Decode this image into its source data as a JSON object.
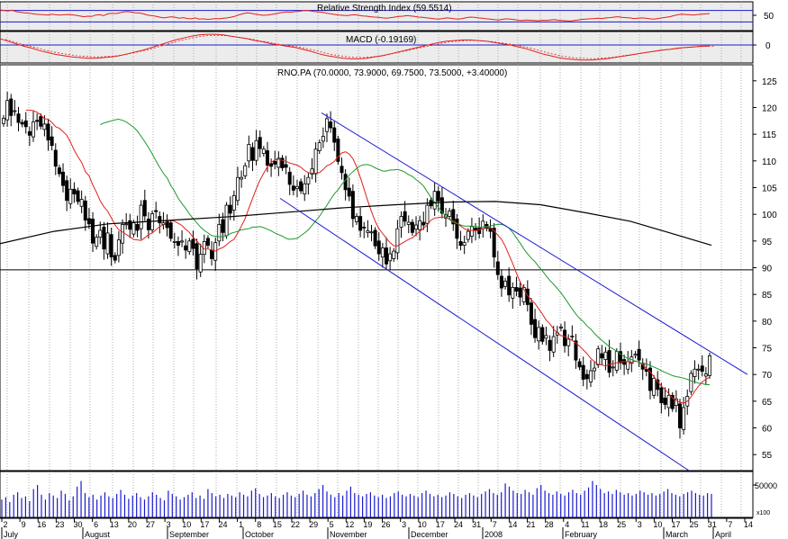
{
  "colors": {
    "background": "#ffffff",
    "panel_background": "#ececec",
    "grid": "#9a9a9a",
    "candle": "#000000",
    "sma_red": "#e0201c",
    "sma_green": "#1b9a2a",
    "sma_black": "#000000",
    "channel": "#1a1ad0",
    "volume": "#1a1ad0",
    "indicator_line": "#e0201c",
    "reference_line": "#1a1ad0",
    "horizontal_line": "#000000"
  },
  "indicators": {
    "rsi_label": "Relative Strength Index (59.5514)",
    "macd_label": "MACD (-0.19169)",
    "rsi_tick": "50",
    "macd_tick": "0"
  },
  "price_panel": {
    "title": "RNO.PA (70.0000, 73.9000, 69.7500, 73.5000, +3.40000)"
  },
  "volume_panel": {
    "tick": "50000",
    "multiplier": "x100"
  },
  "x_axis": {
    "days": [
      "2",
      "9",
      "16",
      "23",
      "30",
      "6",
      "13",
      "20",
      "27",
      "3",
      "10",
      "17",
      "24",
      "1",
      "8",
      "15",
      "22",
      "29",
      "5",
      "12",
      "19",
      "26",
      "3",
      "10",
      "17",
      "24",
      "31",
      "7",
      "14",
      "21",
      "28",
      "4",
      "11",
      "18",
      "25",
      "3",
      "10",
      "17",
      "25",
      "31",
      "7",
      "14"
    ],
    "months": [
      "July",
      "August",
      "September",
      "October",
      "November",
      "December",
      "2008",
      "February",
      "March",
      "April"
    ]
  },
  "chart_data": {
    "type": "candlestick",
    "title": "RNO.PA (70.0000, 73.9000, 69.7500, 73.5000, +3.40000)",
    "ylim": [
      52,
      128
    ],
    "y_ticks": [
      "125",
      "120",
      "115",
      "110",
      "105",
      "100",
      "95",
      "90",
      "85",
      "80",
      "75",
      "70",
      "65",
      "60",
      "55"
    ],
    "horizontal_line": 89.6,
    "closes": [
      118.0,
      121.3,
      118.5,
      119.4,
      117.2,
      116.9,
      116.4,
      114.8,
      117.3,
      117.4,
      116.5,
      116.9,
      113.9,
      112.9,
      109.0,
      107.6,
      105.4,
      102.6,
      104.7,
      103.8,
      102.4,
      102.8,
      98.9,
      98.2,
      94.6,
      95.7,
      97.0,
      93.5,
      96.5,
      92.0,
      91.4,
      95.2,
      98.1,
      98.2,
      97.2,
      98.4,
      97.0,
      101.7,
      99.7,
      97.1,
      100.1,
      100.5,
      98.4,
      98.4,
      97.5,
      95.5,
      94.9,
      94.2,
      95.0,
      93.3,
      95.0,
      93.6,
      89.8,
      92.5,
      94.9,
      94.2,
      91.7,
      94.7,
      98.1,
      96.6,
      101.7,
      100.2,
      103.5,
      106.9,
      106.9,
      109.1,
      113.1,
      110.1,
      113.8,
      112.3,
      112.2,
      109.2,
      109.0,
      109.4,
      110.5,
      108.7,
      108.8,
      105.6,
      104.5,
      105.2,
      104.4,
      105.7,
      106.9,
      108.5,
      112.2,
      113.4,
      114.6,
      117.9,
      116.2,
      113.5,
      109.9,
      107.8,
      104.6,
      103.4,
      99.2,
      99.6,
      97.0,
      97.5,
      96.9,
      96.7,
      94.1,
      92.6,
      93.7,
      90.7,
      92.6,
      93.1,
      97.3,
      99.6,
      98.7,
      98.5,
      96.6,
      98.0,
      98.8,
      98.0,
      101.7,
      101.6,
      104.3,
      102.5,
      100.2,
      99.9,
      100.6,
      98.2,
      95.5,
      94.2,
      94.7,
      96.8,
      97.7,
      97.1,
      96.4,
      98.7,
      97.4,
      96.8,
      92.0,
      88.7,
      86.2,
      87.5,
      84.9,
      86.3,
      85.6,
      84.5,
      86.3,
      83.1,
      79.4,
      76.9,
      78.8,
      76.2,
      77.3,
      74.5,
      77.1,
      77.8,
      78.9,
      75.4,
      76.6,
      77.2,
      72.7,
      71.4,
      69.1,
      69.2,
      70.7,
      71.2,
      74.8,
      73.1,
      74.2,
      70.4,
      71.4,
      74.3,
      72.2,
      71.9,
      72.4,
      73.3,
      73.8,
      72.7,
      71.0,
      70.6,
      67.0,
      69.3,
      67.2,
      64.7,
      64.4,
      66.1,
      63.6,
      65.4,
      60.0,
      63.8,
      65.9,
      70.2,
      71.0,
      71.0,
      70.6,
      70.1,
      73.5
    ],
    "sma_red": [
      119.5,
      119.5,
      119.4,
      119.1,
      118.6,
      117.9,
      117.8,
      117.2,
      116.4,
      116.1,
      115.5,
      114.8,
      113.5,
      112.0,
      110.8,
      109.7,
      108.0,
      107.2,
      105.5,
      104.1,
      102.5,
      101.4,
      100.6,
      99.3,
      98.0,
      97.1,
      96.7,
      96.2,
      95.8,
      95.3,
      95.2,
      95.1,
      95.6,
      96.2,
      96.5,
      97.1,
      97.7,
      98.0,
      98.8,
      98.8,
      98.7,
      98.3,
      97.9,
      97.2,
      96.6,
      95.7,
      95.0,
      94.2,
      93.5,
      93.5,
      93.3,
      93.1,
      93.5,
      93.8,
      94.3,
      94.9,
      95.3,
      96.5,
      97.8,
      99.2,
      101.1,
      103.0,
      104.8,
      106.4,
      107.7,
      108.9,
      109.7,
      110.2,
      110.3,
      110.1,
      109.9,
      109.6,
      109.4,
      109.2,
      108.8,
      108.2,
      107.8,
      107.7,
      107.7,
      107.8,
      108.4,
      109.1,
      109.4,
      109.9,
      110.8,
      111.5,
      111.7,
      111.3,
      110.4,
      108.9,
      106.9,
      104.7,
      102.5,
      100.5,
      98.7,
      97.3,
      96.4,
      95.5,
      94.7,
      94.1,
      94.1,
      94.5,
      94.9,
      95.3,
      95.6,
      96.2,
      96.8,
      97.4,
      98.0,
      98.9,
      99.3,
      99.4,
      99.5,
      99.4,
      99.1,
      98.8,
      98.3,
      97.8,
      97.3,
      97.0,
      97.0,
      96.9,
      97.1,
      97.3,
      97.6,
      97.5,
      96.9,
      96.1,
      95.3,
      94.0,
      92.4,
      90.8,
      89.0,
      87.3,
      85.9,
      84.8,
      84.0,
      83.3,
      82.3,
      81.3,
      80.2,
      79.5,
      78.5,
      77.8,
      77.3,
      77.1,
      76.8,
      76.4,
      75.9,
      75.3,
      74.6,
      73.9,
      73.0,
      72.4,
      71.9,
      71.8,
      71.6,
      71.9,
      72.0,
      72.2,
      72.4,
      72.4,
      72.4,
      72.3,
      72.5,
      72.3,
      71.8,
      71.1,
      70.5,
      69.6,
      68.7,
      67.8,
      67.2,
      66.4,
      65.6,
      65.1,
      64.8,
      64.6,
      65.0,
      65.8,
      66.9,
      67.8,
      68.6,
      69.1,
      69.5
    ],
    "sma_green": [
      116.8,
      117.1,
      117.3,
      117.5,
      117.7,
      117.8,
      117.6,
      117.3,
      116.8,
      116.3,
      115.6,
      114.6,
      113.6,
      112.5,
      111.3,
      110.0,
      108.8,
      107.7,
      106.8,
      105.4,
      104.3,
      103.0,
      102.0,
      101.1,
      100.1,
      99.2,
      98.4,
      97.6,
      97.0,
      96.5,
      96.0,
      95.9,
      95.8,
      95.8,
      95.9,
      96.4,
      96.6,
      96.8,
      97.1,
      97.2,
      97.3,
      97.6,
      97.6,
      97.7,
      97.5,
      97.2,
      96.9,
      96.5,
      96.2,
      95.9,
      95.5,
      95.3,
      95.4,
      95.5,
      96.0,
      96.5,
      97.1,
      97.9,
      98.8,
      99.6,
      100.7,
      101.7,
      102.8,
      103.8,
      104.6,
      105.6,
      106.4,
      107.3,
      108.0,
      108.6,
      109.1,
      109.3,
      109.3,
      109.1,
      108.7,
      108.4,
      108.1,
      108.1,
      108.3,
      108.3,
      108.4,
      108.2,
      107.9,
      107.4,
      107.1,
      106.5,
      106.0,
      105.3,
      104.2,
      103.2,
      102.2,
      101.3,
      100.5,
      99.6,
      99.0,
      98.5,
      98.3,
      98.0,
      97.8,
      97.8,
      97.8,
      97.7,
      97.6,
      97.6,
      97.7,
      97.8,
      98.0,
      98.1,
      98.1,
      97.9,
      97.4,
      96.6,
      95.6,
      94.6,
      93.5,
      92.6,
      91.8,
      91.1,
      90.2,
      89.4,
      88.5,
      87.6,
      86.9,
      86.1,
      85.3,
      84.3,
      83.3,
      82.3,
      81.3,
      80.5,
      79.9,
      79.1,
      78.5,
      77.7,
      77.0,
      76.4,
      75.8,
      75.2,
      74.8,
      74.4,
      73.8,
      73.4,
      73.0,
      72.8,
      72.5,
      72.3,
      72.0,
      72.0,
      71.7,
      71.4,
      71.1,
      70.7,
      70.4,
      70.1,
      69.8,
      69.6,
      69.5,
      69.3,
      69.1,
      68.8,
      68.6,
      68.4,
      68.3,
      68.1,
      68.1
    ],
    "sma_black": [
      [
        0,
        94.5
      ],
      [
        60,
        96.8
      ],
      [
        120,
        98.2
      ],
      [
        200,
        99.0
      ],
      [
        260,
        99.6
      ],
      [
        320,
        100.4
      ],
      [
        380,
        101.2
      ],
      [
        440,
        101.8
      ],
      [
        500,
        102.3
      ],
      [
        550,
        102.4
      ],
      [
        600,
        101.8
      ],
      [
        650,
        100.3
      ],
      [
        700,
        98.7
      ],
      [
        740,
        96.7
      ],
      [
        790,
        94.2
      ]
    ],
    "channel_upper": [
      [
        357,
        119
      ],
      [
        830,
        70
      ]
    ],
    "channel_lower": [
      [
        311,
        103
      ],
      [
        765,
        52
      ]
    ],
    "rsi": [
      72,
      70,
      68,
      71,
      66,
      64,
      62,
      61,
      59,
      57,
      56,
      55,
      54,
      57,
      55,
      54,
      55,
      56,
      55,
      53,
      51,
      48,
      50,
      49,
      54,
      55,
      52,
      58,
      60,
      59,
      62,
      65,
      66,
      64,
      62,
      61,
      58,
      54,
      52,
      50,
      47,
      44,
      46,
      48,
      46,
      43,
      45,
      42,
      41,
      44,
      40,
      41,
      39,
      40,
      42,
      41,
      43,
      44,
      47,
      50,
      55,
      59,
      62,
      60,
      57,
      55,
      53,
      54,
      56,
      58,
      61,
      63,
      65,
      64,
      66,
      67,
      69,
      70,
      68,
      66,
      65,
      63,
      60,
      58,
      56,
      54,
      53,
      52,
      54,
      55,
      53,
      51,
      50,
      48,
      47,
      46,
      44,
      43,
      45,
      47,
      49,
      50,
      52,
      51,
      49,
      47,
      46,
      44,
      43,
      41,
      40,
      42,
      44,
      43,
      41,
      40,
      42,
      45,
      47,
      46,
      44,
      43,
      41,
      40,
      38,
      37,
      39,
      41,
      40,
      38,
      36,
      35,
      37,
      36,
      35,
      34,
      36,
      35,
      37,
      38,
      36,
      35,
      34,
      33,
      35,
      37,
      39,
      40,
      41,
      42,
      43,
      42,
      44,
      45,
      47,
      48,
      46,
      45,
      44,
      42,
      43,
      44,
      43,
      41,
      40,
      42,
      44,
      46,
      48,
      52,
      55,
      57,
      56,
      55,
      54,
      56,
      57,
      58,
      59
    ],
    "rsi_levels": [
      70,
      30
    ],
    "macd": [
      1.0,
      0.6,
      0.2,
      -0.2,
      -0.5,
      -0.9,
      -1.2,
      -1.5,
      -1.7,
      -1.9,
      -2.0,
      -2.1,
      -2.1,
      -2.0,
      -1.9,
      -1.7,
      -1.4,
      -1.1,
      -0.8,
      -0.4,
      0.0,
      0.4,
      0.8,
      1.1,
      1.4,
      1.6,
      1.7,
      1.7,
      1.6,
      1.4,
      1.2,
      1.0,
      0.7,
      0.5,
      0.2,
      0.0,
      -0.2,
      -0.4,
      -0.7,
      -1.0,
      -1.4,
      -1.7,
      -1.9,
      -2.1,
      -2.2,
      -2.2,
      -2.1,
      -1.9,
      -1.7,
      -1.4,
      -1.1,
      -0.8,
      -0.5,
      -0.2,
      0.1,
      0.4,
      0.6,
      0.7,
      0.8,
      0.8,
      0.7,
      0.6,
      0.4,
      0.2,
      0.0,
      -0.3,
      -0.6,
      -1.0,
      -1.4,
      -1.7,
      -2.0,
      -2.2,
      -2.3,
      -2.4,
      -2.4,
      -2.3,
      -2.2,
      -2.0,
      -1.8,
      -1.6,
      -1.4,
      -1.2,
      -1.0,
      -0.8,
      -0.7,
      -0.5,
      -0.4,
      -0.3,
      -0.2,
      -0.19
    ],
    "volume": [
      22,
      25,
      19,
      28,
      31,
      24,
      26,
      20,
      35,
      40,
      28,
      22,
      30,
      27,
      24,
      33,
      29,
      21,
      26,
      38,
      45,
      30,
      25,
      28,
      22,
      27,
      31,
      26,
      24,
      29,
      34,
      28,
      23,
      27,
      30,
      25,
      22,
      26,
      31,
      28,
      24,
      21,
      33,
      29,
      26,
      22,
      25,
      28,
      31,
      24,
      27,
      23,
      35,
      30,
      26,
      28,
      24,
      29,
      27,
      25,
      31,
      28,
      26,
      33,
      36,
      29,
      25,
      27,
      30,
      26,
      24,
      28,
      31,
      27,
      25,
      29,
      33,
      28,
      26,
      30,
      35,
      40,
      32,
      28,
      25,
      30,
      27,
      33,
      38,
      30,
      28,
      26,
      29,
      31,
      27,
      25,
      28,
      24,
      26,
      30,
      32,
      28,
      26,
      29,
      27,
      25,
      30,
      33,
      29,
      26,
      28,
      25,
      27,
      31,
      29,
      26,
      24,
      28,
      30,
      27,
      25,
      29,
      32,
      35,
      30,
      28,
      31,
      42,
      38,
      33,
      30,
      29,
      34,
      31,
      28,
      36,
      40,
      33,
      30,
      28,
      32,
      29,
      27,
      31,
      34,
      30,
      28,
      33,
      37,
      45,
      40,
      35,
      30,
      32,
      29,
      34,
      31,
      28,
      30,
      27,
      29,
      33,
      31,
      28,
      30,
      27,
      29,
      32,
      35,
      30,
      28,
      26,
      29,
      31,
      33,
      30,
      28,
      27,
      30,
      29
    ],
    "volume_levels": [
      50000
    ]
  }
}
